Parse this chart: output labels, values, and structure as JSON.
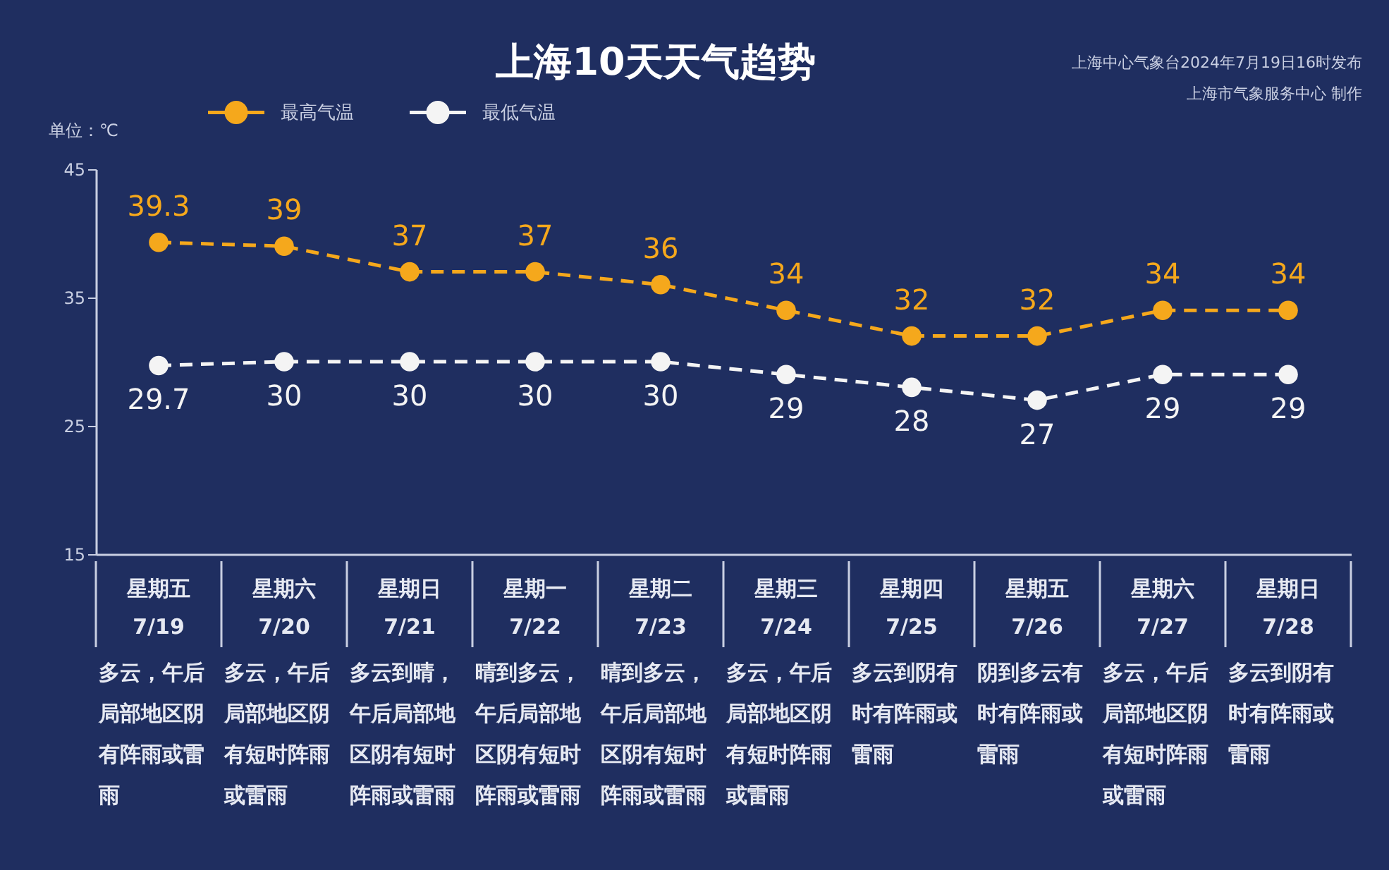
{
  "chart_data": {
    "type": "line",
    "title": "上海10天天气趋势",
    "ylabel": "单位：℃",
    "categories": [
      "星期五\n7/19",
      "星期六\n7/20",
      "星期日\n7/21",
      "星期一\n7/22",
      "星期二\n7/23",
      "星期三\n7/24",
      "星期四\n7/25",
      "星期五\n7/26",
      "星期六\n7/27",
      "星期日\n7/28"
    ],
    "series": [
      {
        "name": "最高气温",
        "color": "#f5a81c",
        "values": [
          39.3,
          39,
          37,
          37,
          36,
          34,
          32,
          32,
          34,
          34
        ]
      },
      {
        "name": "最低气温",
        "color": "#f4f4f4",
        "values": [
          29.7,
          30,
          30,
          30,
          30,
          29,
          28,
          27,
          29,
          29
        ]
      }
    ],
    "ylim": [
      15,
      45
    ],
    "yticks": [
      15,
      25,
      35,
      45
    ],
    "grid": false,
    "legend": "top left",
    "marker": "circle",
    "line_style": "dashed",
    "data_labels": true,
    "annotations": [
      "上海中心气象台2024年7月19日16时发布",
      "上海市气象服务中心 制作",
      "多云，午后局部地区阴有阵雨或雷雨",
      "多云，午后局部地区阴有短时阵雨或雷雨",
      "多云到晴，午后局部地区阴有短时阵雨或雷雨",
      "晴到多云，午后局部地区阴有短时阵雨或雷雨",
      "晴到多云，午后局部地区阴有短时阵雨或雷雨",
      "多云，午后局部地区阴有短时阵雨或雷雨",
      "多云到阴有时有阵雨或雷雨",
      "阴到多云有时有阵雨或雷雨",
      "多云，午后局部地区阴有短时阵雨或雷雨",
      "多云到阴有时有阵雨或雷雨"
    ]
  }
}
